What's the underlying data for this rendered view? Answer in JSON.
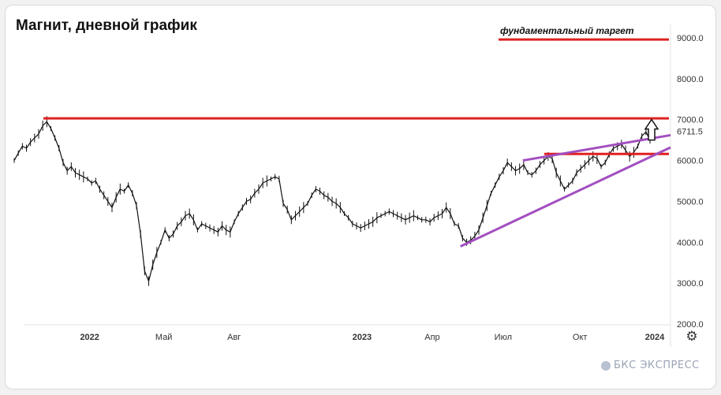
{
  "chart_data": {
    "type": "line",
    "title": "Магнит, дневной график",
    "xlabel": "",
    "ylabel": "",
    "ylim": [
      2000,
      9000
    ],
    "y_ticks": [
      "9000.0",
      "8000.0",
      "7000.0",
      "6000.0",
      "5000.0",
      "4000.0",
      "3000.0",
      "2000.0"
    ],
    "current_price_label": "6711.5",
    "x_ticks": [
      "2022",
      "Май",
      "Авг",
      "2023",
      "Апр",
      "Июл",
      "Окт",
      "2024"
    ],
    "grid": false,
    "series": [
      {
        "values": [
          6000,
          6180,
          6350,
          6300,
          6450,
          6550,
          6650,
          6850,
          6950,
          6780,
          6550,
          6300,
          5950,
          5750,
          5850,
          5700,
          5650,
          5600,
          5550,
          5450,
          5500,
          5300,
          5150,
          5000,
          4850,
          5100,
          5300,
          5250,
          5400,
          5200,
          4900,
          4200,
          3300,
          3050,
          3450,
          3750,
          4000,
          4300,
          4100,
          4200,
          4400,
          4500,
          4650,
          4700,
          4550,
          4300,
          4450,
          4400,
          4350,
          4300,
          4250,
          4400,
          4300,
          4250,
          4500,
          4700,
          4850,
          5000,
          5050,
          5200,
          5300,
          5450,
          5500,
          5550,
          5600,
          5550,
          4950,
          4800,
          4550,
          4650,
          4750,
          4850,
          4950,
          5150,
          5300,
          5250,
          5150,
          5100,
          5000,
          4950,
          4850,
          4700,
          4600,
          4450,
          4400,
          4350,
          4400,
          4450,
          4500,
          4600,
          4650,
          4700,
          4750,
          4700,
          4650,
          4600,
          4550,
          4600,
          4650,
          4600,
          4550,
          4550,
          4500,
          4600,
          4650,
          4700,
          4850,
          4700,
          4450,
          4400,
          4100,
          4000,
          4050,
          4150,
          4300,
          4600,
          4900,
          5200,
          5400,
          5600,
          5750,
          5950,
          5850,
          5750,
          5800,
          5900,
          5700,
          5650,
          5750,
          5900,
          6000,
          6100,
          6050,
          5700,
          5500,
          5300,
          5400,
          5500,
          5700,
          5800,
          5900,
          6000,
          6100,
          6050,
          5850,
          5950,
          6150,
          6300,
          6350,
          6400,
          6250,
          6100,
          6200,
          6350,
          6600,
          6700,
          6500,
          6711.5
        ]
      }
    ],
    "annotations": {
      "fundamental_target_label": "фундаментальный таргет",
      "fundamental_target_level": 8960,
      "resistance_level": 7030,
      "support_level": 6160,
      "channel_upper": [
        [
          0.775,
          6000
        ],
        [
          1.0,
          6620
        ]
      ],
      "channel_lower": [
        [
          0.68,
          3900
        ],
        [
          1.0,
          6320
        ]
      ]
    },
    "colors": {
      "price_line": "#111111",
      "level_lines": "#e02020",
      "trend_lines": "#a24fc0",
      "axis_text": "#333333"
    }
  },
  "branding": {
    "text": "БКС ЭКСПРЕСС",
    "icon": "bks-logo-icon"
  },
  "controls": {
    "settings_icon": "gear-icon",
    "settings_glyph": "⚙"
  }
}
